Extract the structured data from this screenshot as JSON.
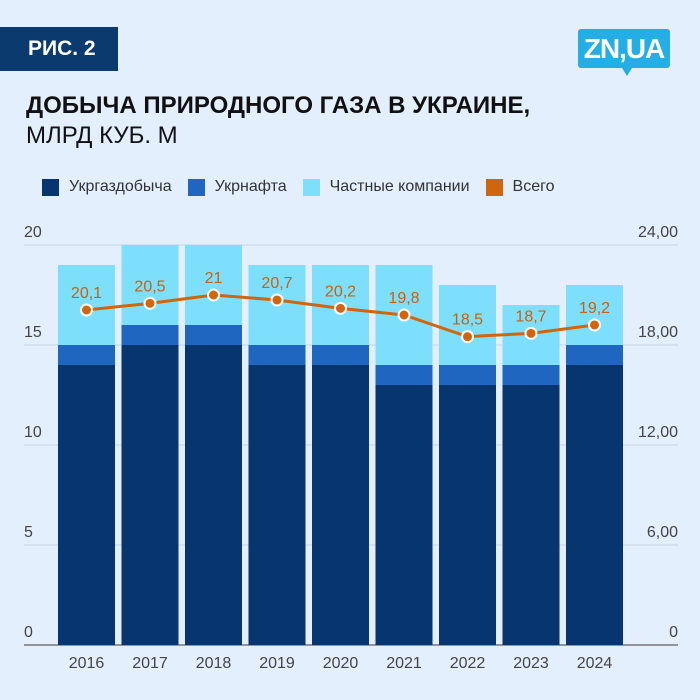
{
  "header": {
    "badge": "РИС. 2",
    "logo": "ZN,UA"
  },
  "chart_data": {
    "type": "bar",
    "stacked": true,
    "title": "ДОБЫЧА ПРИРОДНОГО ГАЗА В УКРАИНЕ,",
    "subtitle": "МЛРД КУБ. М",
    "categories": [
      "2016",
      "2017",
      "2018",
      "2019",
      "2020",
      "2021",
      "2022",
      "2023",
      "2024"
    ],
    "series": [
      {
        "name": "Укргаздобыча",
        "color": "#06356f",
        "values": [
          14,
          15,
          15,
          14,
          14,
          13,
          13,
          13,
          14
        ]
      },
      {
        "name": "Укрнафта",
        "color": "#1e66c0",
        "values": [
          1,
          1,
          1,
          1,
          1,
          1,
          1,
          1,
          1
        ]
      },
      {
        "name": "Частные компании",
        "color": "#7ddffc",
        "values": [
          4,
          4,
          4,
          4,
          4,
          5,
          4,
          3,
          3
        ]
      }
    ],
    "line": {
      "name": "Всего",
      "color": "#d2650c",
      "values": [
        20.1,
        20.5,
        21,
        20.7,
        20.2,
        19.8,
        18.5,
        18.7,
        19.2
      ],
      "labels": [
        "20,1",
        "20,5",
        "21",
        "20,7",
        "20,2",
        "19,8",
        "18,5",
        "18,7",
        "19,2"
      ]
    },
    "ylim": [
      0,
      20
    ],
    "yticks": [
      "0",
      "5",
      "10",
      "15",
      "20"
    ],
    "y2lim": [
      0,
      24
    ],
    "y2ticks": [
      "0",
      "6,00",
      "12,00",
      "18,00",
      "24,00"
    ],
    "legend": "top",
    "grid": true
  }
}
